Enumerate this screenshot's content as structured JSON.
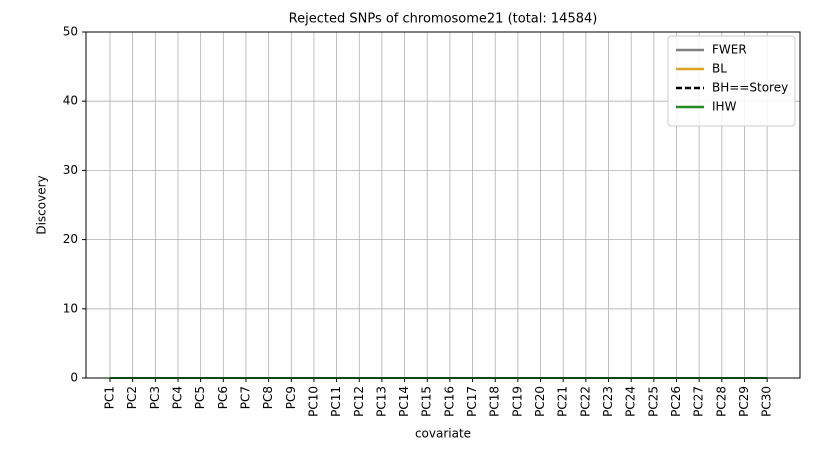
{
  "chart_data": {
    "type": "line",
    "title": "Rejected SNPs of chromosome21 (total: 14584)",
    "xlabel": "covariate",
    "ylabel": "Discovery",
    "categories": [
      "PC1",
      "PC2",
      "PC3",
      "PC4",
      "PC5",
      "PC6",
      "PC7",
      "PC8",
      "PC9",
      "PC10",
      "PC11",
      "PC12",
      "PC13",
      "PC14",
      "PC15",
      "PC16",
      "PC17",
      "PC18",
      "PC19",
      "PC20",
      "PC21",
      "PC22",
      "PC23",
      "PC24",
      "PC25",
      "PC26",
      "PC27",
      "PC28",
      "PC29",
      "PC30"
    ],
    "series": [
      {
        "name": "FWER",
        "color": "#808080",
        "linestyle": "solid",
        "values": [
          0,
          0,
          0,
          0,
          0,
          0,
          0,
          0,
          0,
          0,
          0,
          0,
          0,
          0,
          0,
          0,
          0,
          0,
          0,
          0,
          0,
          0,
          0,
          0,
          0,
          0,
          0,
          0,
          0,
          0
        ]
      },
      {
        "name": "BL",
        "color": "#daa520",
        "linestyle": "solid",
        "values": [
          0,
          0,
          0,
          0,
          0,
          0,
          0,
          0,
          0,
          0,
          0,
          0,
          0,
          0,
          0,
          0,
          0,
          0,
          0,
          0,
          0,
          0,
          0,
          0,
          0,
          0,
          0,
          0,
          0,
          0
        ]
      },
      {
        "name": "BH==Storey",
        "color": "#000000",
        "linestyle": "dashed",
        "values": [
          0,
          0,
          0,
          0,
          0,
          0,
          0,
          0,
          0,
          0,
          0,
          0,
          0,
          0,
          0,
          0,
          0,
          0,
          0,
          0,
          0,
          0,
          0,
          0,
          0,
          0,
          0,
          0,
          0,
          0
        ]
      },
      {
        "name": "IHW",
        "color": "#228b22",
        "linestyle": "solid",
        "values": [
          0,
          0,
          0,
          0,
          0,
          0,
          0,
          0,
          0,
          0,
          0,
          0,
          0,
          0,
          0,
          0,
          0,
          0,
          0,
          0,
          0,
          0,
          0,
          0,
          0,
          0,
          0,
          0,
          0,
          0
        ]
      }
    ],
    "ylim": [
      0,
      50
    ],
    "yticks": [
      0,
      10,
      20,
      30,
      40,
      50
    ],
    "grid": true,
    "legend": "upper right"
  }
}
